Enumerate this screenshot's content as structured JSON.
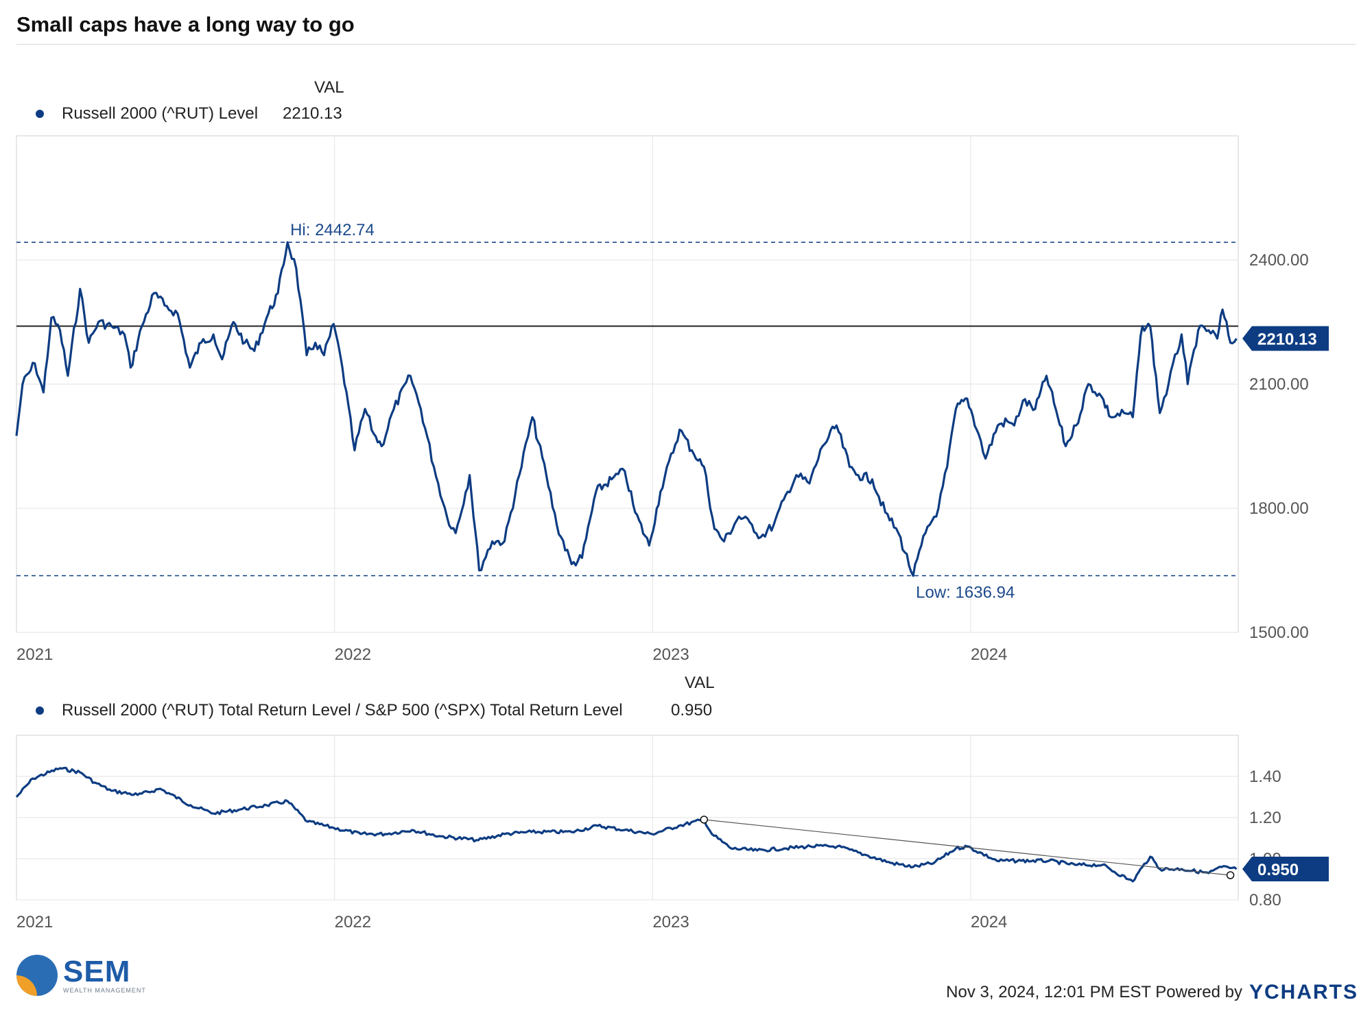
{
  "title": "Small caps have a long way to go",
  "colors": {
    "series": "#0d3c82",
    "reference": "#222222",
    "trend": "#555555"
  },
  "top_panel": {
    "val_header": "VAL",
    "legend_label": "Russell 2000 (^RUT) Level",
    "legend_value": "2210.13",
    "badge": "2210.13",
    "hi_label": "Hi: 2442.74",
    "low_label": "Low: 1636.94"
  },
  "bottom_panel": {
    "val_header": "VAL",
    "legend_label": "Russell 2000 (^RUT) Total Return Level / S&P 500 (^SPX) Total Return Level",
    "legend_value": "0.950",
    "badge": "0.950"
  },
  "footer": {
    "timestamp": "Nov 3, 2024, 12:01 PM EST Powered by",
    "brand": "YCHARTS"
  },
  "logo": {
    "name": "SEM",
    "tagline": "WEALTH MANAGEMENT"
  },
  "chart_data": [
    {
      "type": "line",
      "title": "Small caps have a long way to go",
      "series": [
        {
          "name": "Russell 2000 (^RUT) Level",
          "points": [
            [
              "2021-01-01",
              1975
            ],
            [
              "2021-01-08",
              2100
            ],
            [
              "2021-01-22",
              2150
            ],
            [
              "2021-02-01",
              2080
            ],
            [
              "2021-02-10",
              2260
            ],
            [
              "2021-02-20",
              2230
            ],
            [
              "2021-03-01",
              2120
            ],
            [
              "2021-03-15",
              2330
            ],
            [
              "2021-03-25",
              2200
            ],
            [
              "2021-04-05",
              2250
            ],
            [
              "2021-04-20",
              2240
            ],
            [
              "2021-05-05",
              2220
            ],
            [
              "2021-05-12",
              2140
            ],
            [
              "2021-05-25",
              2240
            ],
            [
              "2021-06-08",
              2320
            ],
            [
              "2021-06-20",
              2290
            ],
            [
              "2021-07-05",
              2270
            ],
            [
              "2021-07-19",
              2140
            ],
            [
              "2021-08-01",
              2200
            ],
            [
              "2021-08-15",
              2220
            ],
            [
              "2021-08-25",
              2160
            ],
            [
              "2021-09-07",
              2250
            ],
            [
              "2021-09-20",
              2200
            ],
            [
              "2021-10-01",
              2180
            ],
            [
              "2021-10-15",
              2260
            ],
            [
              "2021-10-28",
              2320
            ],
            [
              "2021-11-08",
              2442.74
            ],
            [
              "2021-11-18",
              2380
            ],
            [
              "2021-11-30",
              2170
            ],
            [
              "2021-12-10",
              2200
            ],
            [
              "2021-12-20",
              2170
            ],
            [
              "2021-12-31",
              2245
            ],
            [
              "2022-01-10",
              2140
            ],
            [
              "2022-01-24",
              1940
            ],
            [
              "2022-02-05",
              2040
            ],
            [
              "2022-02-15",
              1980
            ],
            [
              "2022-02-24",
              1950
            ],
            [
              "2022-03-10",
              2040
            ],
            [
              "2022-03-29",
              2120
            ],
            [
              "2022-04-10",
              2040
            ],
            [
              "2022-04-25",
              1900
            ],
            [
              "2022-05-10",
              1780
            ],
            [
              "2022-05-20",
              1740
            ],
            [
              "2022-06-05",
              1880
            ],
            [
              "2022-06-16",
              1650
            ],
            [
              "2022-07-01",
              1720
            ],
            [
              "2022-07-15",
              1720
            ],
            [
              "2022-08-01",
              1880
            ],
            [
              "2022-08-16",
              2020
            ],
            [
              "2022-09-01",
              1880
            ],
            [
              "2022-09-13",
              1760
            ],
            [
              "2022-09-30",
              1665
            ],
            [
              "2022-10-12",
              1680
            ],
            [
              "2022-10-28",
              1840
            ],
            [
              "2022-11-15",
              1870
            ],
            [
              "2022-11-30",
              1890
            ],
            [
              "2022-12-12",
              1790
            ],
            [
              "2022-12-28",
              1710
            ],
            [
              "2023-01-10",
              1840
            ],
            [
              "2023-02-01",
              1990
            ],
            [
              "2023-02-15",
              1940
            ],
            [
              "2023-03-01",
              1900
            ],
            [
              "2023-03-13",
              1750
            ],
            [
              "2023-03-24",
              1720
            ],
            [
              "2023-04-10",
              1780
            ],
            [
              "2023-04-25",
              1760
            ],
            [
              "2023-05-05",
              1730
            ],
            [
              "2023-05-20",
              1760
            ],
            [
              "2023-06-05",
              1840
            ],
            [
              "2023-06-15",
              1880
            ],
            [
              "2023-06-30",
              1860
            ],
            [
              "2023-07-15",
              1950
            ],
            [
              "2023-07-31",
              2000
            ],
            [
              "2023-08-15",
              1900
            ],
            [
              "2023-08-25",
              1880
            ],
            [
              "2023-09-10",
              1870
            ],
            [
              "2023-09-25",
              1790
            ],
            [
              "2023-10-10",
              1740
            ],
            [
              "2023-10-27",
              1636.94
            ],
            [
              "2023-11-10",
              1740
            ],
            [
              "2023-11-25",
              1800
            ],
            [
              "2023-12-05",
              1900
            ],
            [
              "2023-12-15",
              2040
            ],
            [
              "2023-12-28",
              2065
            ],
            [
              "2024-01-10",
              1980
            ],
            [
              "2024-01-18",
              1920
            ],
            [
              "2024-02-01",
              2000
            ],
            [
              "2024-02-12",
              2010
            ],
            [
              "2024-02-20",
              2000
            ],
            [
              "2024-03-01",
              2060
            ],
            [
              "2024-03-15",
              2040
            ],
            [
              "2024-03-28",
              2120
            ],
            [
              "2024-04-10",
              2020
            ],
            [
              "2024-04-19",
              1950
            ],
            [
              "2024-05-01",
              2000
            ],
            [
              "2024-05-15",
              2100
            ],
            [
              "2024-05-30",
              2070
            ],
            [
              "2024-06-10",
              2020
            ],
            [
              "2024-06-25",
              2030
            ],
            [
              "2024-07-05",
              2020
            ],
            [
              "2024-07-12",
              2170
            ],
            [
              "2024-07-16",
              2240
            ],
            [
              "2024-07-25",
              2240
            ],
            [
              "2024-08-05",
              2030
            ],
            [
              "2024-08-15",
              2100
            ],
            [
              "2024-08-30",
              2220
            ],
            [
              "2024-09-06",
              2100
            ],
            [
              "2024-09-18",
              2230
            ],
            [
              "2024-09-30",
              2230
            ],
            [
              "2024-10-10",
              2210
            ],
            [
              "2024-10-16",
              2280
            ],
            [
              "2024-10-25",
              2200
            ],
            [
              "2024-11-01",
              2210.13
            ]
          ]
        }
      ],
      "reference_line": 2240,
      "annotations": {
        "high": 2442.74,
        "low": 1636.94,
        "last": 2210.13
      },
      "x_ticks": [
        "2021",
        "2022",
        "2023",
        "2024"
      ],
      "y_ticks": [
        "2400.00",
        "2100.00",
        "1800.00",
        "1500.00"
      ],
      "ylim": [
        1500,
        2700
      ],
      "xlim": [
        "2021-01-01",
        "2024-11-03"
      ],
      "grid": true
    },
    {
      "type": "line",
      "series": [
        {
          "name": "Russell 2000 (^RUT) Total Return Level / S&P 500 (^SPX) Total Return Level",
          "points": [
            [
              "2021-01-01",
              1.3
            ],
            [
              "2021-01-20",
              1.39
            ],
            [
              "2021-02-20",
              1.44
            ],
            [
              "2021-03-15",
              1.42
            ],
            [
              "2021-04-01",
              1.37
            ],
            [
              "2021-04-20",
              1.33
            ],
            [
              "2021-05-20",
              1.31
            ],
            [
              "2021-06-15",
              1.34
            ],
            [
              "2021-07-20",
              1.26
            ],
            [
              "2021-08-15",
              1.22
            ],
            [
              "2021-09-15",
              1.24
            ],
            [
              "2021-10-15",
              1.26
            ],
            [
              "2021-11-08",
              1.28
            ],
            [
              "2021-12-01",
              1.18
            ],
            [
              "2021-12-31",
              1.15
            ],
            [
              "2022-01-31",
              1.12
            ],
            [
              "2022-02-28",
              1.12
            ],
            [
              "2022-03-31",
              1.14
            ],
            [
              "2022-05-01",
              1.11
            ],
            [
              "2022-06-15",
              1.09
            ],
            [
              "2022-07-15",
              1.12
            ],
            [
              "2022-08-15",
              1.13
            ],
            [
              "2022-09-30",
              1.13
            ],
            [
              "2022-10-30",
              1.16
            ],
            [
              "2022-11-30",
              1.14
            ],
            [
              "2022-12-31",
              1.12
            ],
            [
              "2023-01-31",
              1.16
            ],
            [
              "2023-03-01",
              1.19
            ],
            [
              "2023-03-10",
              1.12
            ],
            [
              "2023-04-01",
              1.05
            ],
            [
              "2023-05-01",
              1.04
            ],
            [
              "2023-06-01",
              1.05
            ],
            [
              "2023-07-01",
              1.06
            ],
            [
              "2023-08-01",
              1.06
            ],
            [
              "2023-09-01",
              1.02
            ],
            [
              "2023-10-01",
              0.98
            ],
            [
              "2023-10-27",
              0.96
            ],
            [
              "2023-11-20",
              0.98
            ],
            [
              "2023-12-15",
              1.05
            ],
            [
              "2023-12-28",
              1.06
            ],
            [
              "2024-01-31",
              0.99
            ],
            [
              "2024-02-28",
              0.99
            ],
            [
              "2024-03-31",
              0.99
            ],
            [
              "2024-04-30",
              0.97
            ],
            [
              "2024-05-31",
              0.97
            ],
            [
              "2024-06-30",
              0.9
            ],
            [
              "2024-07-05",
              0.89
            ],
            [
              "2024-07-16",
              0.96
            ],
            [
              "2024-07-25",
              1.01
            ],
            [
              "2024-08-05",
              0.95
            ],
            [
              "2024-08-30",
              0.95
            ],
            [
              "2024-09-30",
              0.93
            ],
            [
              "2024-10-15",
              0.96
            ],
            [
              "2024-11-01",
              0.95
            ]
          ]
        }
      ],
      "trend_line": [
        [
          "2023-03-01",
          1.19
        ],
        [
          "2024-10-25",
          0.92
        ]
      ],
      "annotations": {
        "last": 0.95
      },
      "x_ticks": [
        "2021",
        "2022",
        "2023",
        "2024"
      ],
      "y_ticks": [
        "1.40",
        "1.20",
        "1.00",
        "0.80"
      ],
      "ylim": [
        0.8,
        1.6
      ],
      "xlim": [
        "2021-01-01",
        "2024-11-03"
      ],
      "grid": true
    }
  ]
}
